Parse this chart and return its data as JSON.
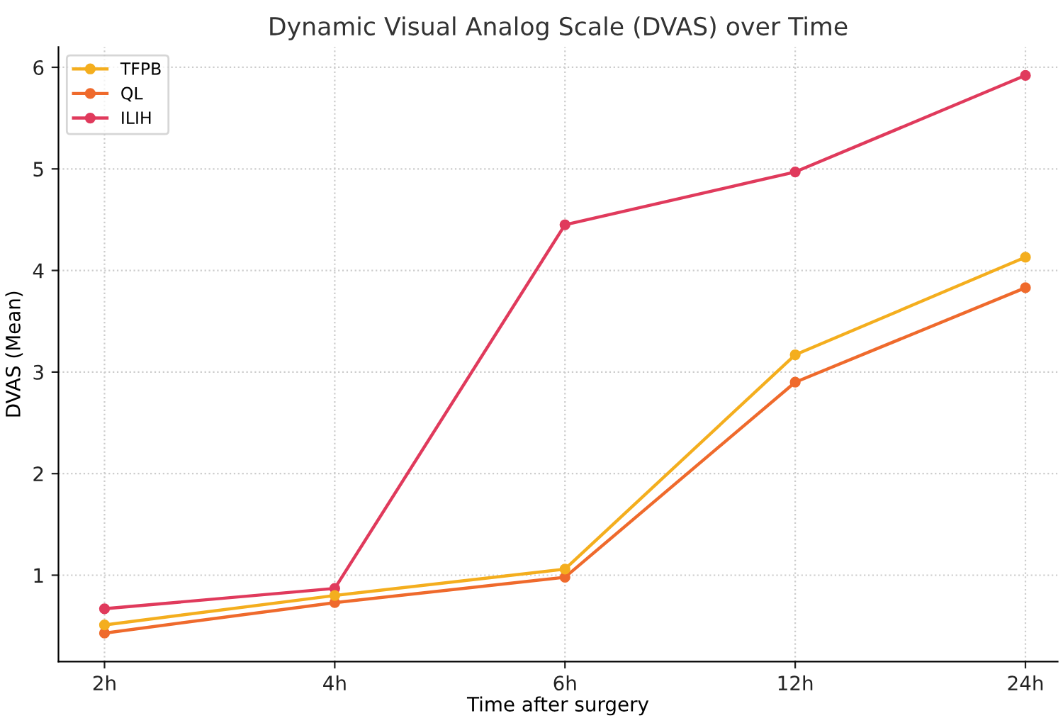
{
  "chart_data": {
    "type": "line",
    "title": "Dynamic Visual Analog Scale (DVAS) over Time",
    "xlabel": "Time after surgery",
    "ylabel": "DVAS (Mean)",
    "categories": [
      "2h",
      "4h",
      "6h",
      "12h",
      "24h"
    ],
    "series": [
      {
        "name": "TFPB",
        "color": "#f4ae1e",
        "values": [
          0.51,
          0.8,
          1.06,
          3.17,
          4.13
        ]
      },
      {
        "name": "QL",
        "color": "#ef6a2c",
        "values": [
          0.43,
          0.73,
          0.98,
          2.9,
          3.83
        ]
      },
      {
        "name": "ILIH",
        "color": "#e03a5c",
        "values": [
          0.67,
          0.87,
          4.45,
          4.97,
          5.92
        ]
      }
    ],
    "ylim": [
      0.15,
      6.2
    ],
    "yticks": [
      1,
      2,
      3,
      4,
      5,
      6
    ],
    "grid": true,
    "legend": "top left",
    "marker": "circle",
    "line_style": "solid"
  }
}
